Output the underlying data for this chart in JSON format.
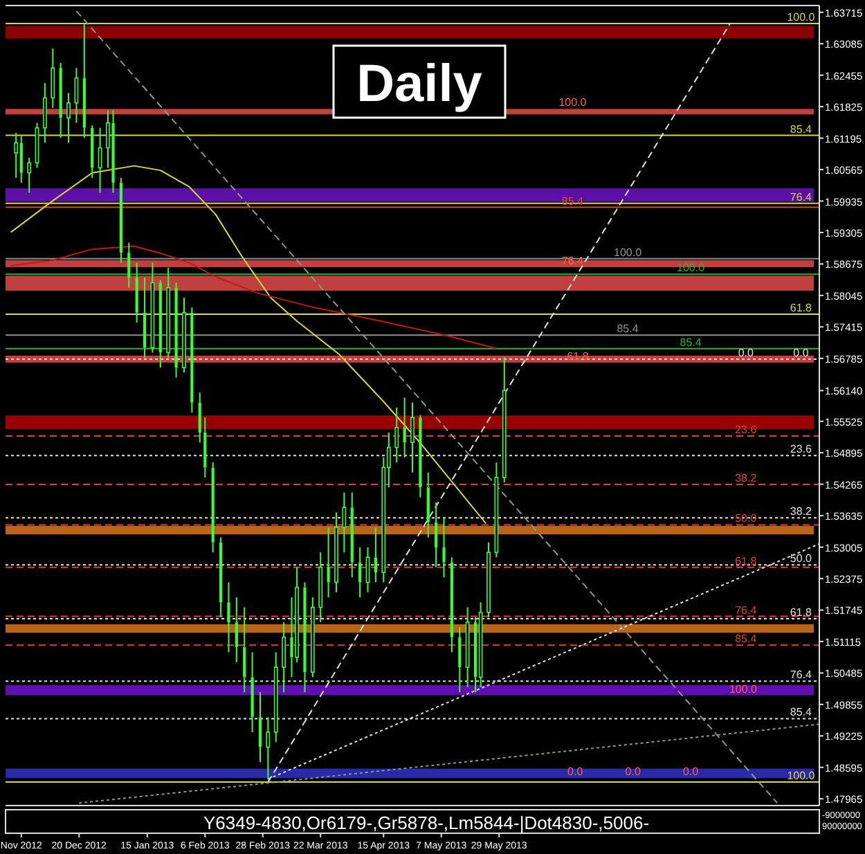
{
  "chart_data": {
    "type": "candlestick",
    "title": "Daily",
    "color": "#33ff33",
    "x": [
      "2012-11-26",
      "2012-11-28",
      "2012-12-01",
      "2012-12-04",
      "2012-12-07",
      "2012-12-10",
      "2012-12-13",
      "2012-12-16",
      "2012-12-19",
      "2012-12-22",
      "2012-12-25",
      "2012-12-28",
      "2012-12-31",
      "2013-01-02",
      "2013-01-05",
      "2013-01-08",
      "2013-01-11",
      "2013-01-14",
      "2013-01-17",
      "2013-01-20",
      "2013-01-23",
      "2013-01-26",
      "2013-01-29",
      "2013-02-01",
      "2013-02-04",
      "2013-02-06",
      "2013-02-09",
      "2013-02-12",
      "2013-02-15",
      "2013-02-18",
      "2013-02-21",
      "2013-02-24",
      "2013-02-27",
      "2013-03-02",
      "2013-03-05",
      "2013-03-08",
      "2013-03-11",
      "2013-03-13",
      "2013-03-16",
      "2013-03-19",
      "2013-03-22",
      "2013-03-25",
      "2013-03-28",
      "2013-03-31",
      "2013-04-03",
      "2013-04-06",
      "2013-04-09",
      "2013-04-12",
      "2013-04-15",
      "2013-04-17",
      "2013-04-20",
      "2013-04-23",
      "2013-04-26",
      "2013-04-29",
      "2013-05-02",
      "2013-05-05",
      "2013-05-08",
      "2013-05-11",
      "2013-05-14",
      "2013-05-17",
      "2013-05-20",
      "2013-05-22",
      "2013-05-25",
      "2013-05-28",
      "2013-05-31"
    ],
    "ohlc": [
      [
        1.609,
        1.613,
        1.604,
        1.611
      ],
      [
        1.611,
        1.6125,
        1.603,
        1.605
      ],
      [
        1.605,
        1.608,
        1.601,
        1.607
      ],
      [
        1.607,
        1.615,
        1.606,
        1.614
      ],
      [
        1.614,
        1.623,
        1.611,
        1.62
      ],
      [
        1.62,
        1.6299,
        1.618,
        1.626
      ],
      [
        1.626,
        1.627,
        1.612,
        1.616
      ],
      [
        1.616,
        1.621,
        1.611,
        1.619
      ],
      [
        1.619,
        1.626,
        1.615,
        1.624
      ],
      [
        1.624,
        1.6349,
        1.612,
        1.614
      ],
      [
        1.614,
        1.6145,
        1.604,
        1.606
      ],
      [
        1.606,
        1.614,
        1.601,
        1.61
      ],
      [
        1.61,
        1.6175,
        1.606,
        1.615
      ],
      [
        1.615,
        1.6175,
        1.601,
        1.603
      ],
      [
        1.603,
        1.604,
        1.587,
        1.589
      ],
      [
        1.589,
        1.591,
        1.582,
        1.584
      ],
      [
        1.584,
        1.587,
        1.575,
        1.577
      ],
      [
        1.577,
        1.584,
        1.568,
        1.57
      ],
      [
        1.57,
        1.587,
        1.569,
        1.583
      ],
      [
        1.583,
        1.5835,
        1.566,
        1.569
      ],
      [
        1.569,
        1.586,
        1.568,
        1.582
      ],
      [
        1.582,
        1.583,
        1.564,
        1.566
      ],
      [
        1.566,
        1.58,
        1.565,
        1.577
      ],
      [
        1.577,
        1.578,
        1.557,
        1.559
      ],
      [
        1.559,
        1.561,
        1.551,
        1.553
      ],
      [
        1.553,
        1.556,
        1.544,
        1.546
      ],
      [
        1.546,
        1.547,
        1.529,
        1.531
      ],
      [
        1.531,
        1.532,
        1.516,
        1.519
      ],
      [
        1.519,
        1.523,
        1.509,
        1.515
      ],
      [
        1.515,
        1.52,
        1.507,
        1.51
      ],
      [
        1.51,
        1.518,
        1.501,
        1.504
      ],
      [
        1.504,
        1.509,
        1.493,
        1.496
      ],
      [
        1.496,
        1.501,
        1.487,
        1.49
      ],
      [
        1.49,
        1.496,
        1.4835,
        1.493
      ],
      [
        1.493,
        1.509,
        1.491,
        1.506
      ],
      [
        1.506,
        1.515,
        1.501,
        1.512
      ],
      [
        1.512,
        1.52,
        1.504,
        1.508
      ],
      [
        1.508,
        1.526,
        1.507,
        1.522
      ],
      [
        1.522,
        1.523,
        1.501,
        1.505
      ],
      [
        1.505,
        1.52,
        1.504,
        1.518
      ],
      [
        1.518,
        1.529,
        1.515,
        1.526
      ],
      [
        1.526,
        1.534,
        1.52,
        1.523
      ],
      [
        1.523,
        1.537,
        1.521,
        1.534
      ],
      [
        1.534,
        1.541,
        1.529,
        1.538
      ],
      [
        1.538,
        1.541,
        1.524,
        1.527
      ],
      [
        1.527,
        1.53,
        1.52,
        1.523
      ],
      [
        1.523,
        1.53,
        1.521,
        1.528
      ],
      [
        1.528,
        1.534,
        1.523,
        1.525
      ],
      [
        1.525,
        1.548,
        1.523,
        1.546
      ],
      [
        1.546,
        1.553,
        1.542,
        1.55
      ],
      [
        1.55,
        1.558,
        1.547,
        1.554
      ],
      [
        1.554,
        1.56,
        1.548,
        1.551
      ],
      [
        1.551,
        1.559,
        1.545,
        1.556
      ],
      [
        1.556,
        1.5565,
        1.54,
        1.542
      ],
      [
        1.542,
        1.545,
        1.532,
        1.535
      ],
      [
        1.535,
        1.539,
        1.526,
        1.53
      ],
      [
        1.53,
        1.536,
        1.524,
        1.527
      ],
      [
        1.527,
        1.528,
        1.509,
        1.512
      ],
      [
        1.512,
        1.514,
        1.501,
        1.506
      ],
      [
        1.506,
        1.518,
        1.502,
        1.515
      ],
      [
        1.515,
        1.516,
        1.501,
        1.504
      ],
      [
        1.504,
        1.519,
        1.502,
        1.517
      ],
      [
        1.517,
        1.531,
        1.516,
        1.529
      ],
      [
        1.529,
        1.547,
        1.528,
        1.544
      ],
      [
        1.544,
        1.5681,
        1.543,
        1.5614
      ]
    ],
    "series": [
      {
        "type": "line",
        "color": "#d8d830",
        "x": [
          "2012-11-24",
          "2012-12-10",
          "2012-12-25",
          "2013-01-10",
          "2013-01-20",
          "2013-01-31",
          "2013-02-10",
          "2013-02-20",
          "2013-03-03",
          "2013-03-13",
          "2013-03-29",
          "2013-04-15",
          "2013-04-29",
          "2013-05-24"
        ],
        "values": [
          1.5931,
          1.5994,
          1.605,
          1.6064,
          1.6055,
          1.6022,
          1.5967,
          1.5883,
          1.58,
          1.5753,
          1.5687,
          1.5592,
          1.5509,
          1.5348
        ]
      },
      {
        "type": "line",
        "color": "#c01818",
        "x": [
          "2012-11-24",
          "2012-12-10",
          "2012-12-25",
          "2013-01-10",
          "2013-01-20",
          "2013-01-31",
          "2013-02-10",
          "2013-02-26",
          "2013-03-19",
          "2013-04-14",
          "2013-05-10",
          "2013-05-28"
        ],
        "values": [
          1.5864,
          1.5875,
          1.5897,
          1.5903,
          1.5889,
          1.587,
          1.5842,
          1.5809,
          1.5781,
          1.5753,
          1.5723,
          1.5698
        ]
      },
      {
        "type": "line",
        "color": "#e0e0e0",
        "line_style": "dashed",
        "x": [
          "2013-03-02",
          "2013-08-25"
        ],
        "values": [
          1.483,
          1.6349
        ]
      },
      {
        "type": "line",
        "color": "#8a9a8a",
        "line_style": "dashed",
        "x": [
          "2012-12-19",
          "2013-09-12"
        ],
        "values": [
          1.6374,
          1.4788
        ]
      },
      {
        "type": "line",
        "color": "#e0e0e0",
        "line_style": "dotted",
        "x": [
          "2013-03-02",
          "2013-09-28"
        ],
        "values": [
          1.4836,
          1.5307
        ]
      },
      {
        "type": "line",
        "color": "#8a9a8a",
        "line_style": "dotted",
        "x": [
          "2012-12-20",
          "2013-09-28"
        ],
        "values": [
          1.4788,
          1.4946
        ]
      }
    ],
    "xlim": [
      "2012-11-22",
      "2013-09-28"
    ],
    "xticks": [
      {
        "value": "2012-11-28",
        "label": "Nov 2012"
      },
      {
        "value": "2012-12-20",
        "label": "20 Dec 2012"
      },
      {
        "value": "2013-01-15",
        "label": "15 Jan 2013"
      },
      {
        "value": "2013-02-06",
        "label": "6 Feb 2013"
      },
      {
        "value": "2013-02-28",
        "label": "28 Feb 2013"
      },
      {
        "value": "2013-03-22",
        "label": "22 Mar 2013"
      },
      {
        "value": "2013-04-15",
        "label": "15 Apr 2013"
      },
      {
        "value": "2013-05-07",
        "label": "7 May 2013"
      },
      {
        "value": "2013-05-29",
        "label": "29 May 2013"
      }
    ],
    "ylim": [
      1.4783,
      1.6385
    ],
    "yticks": [
      1.63715,
      1.63085,
      1.62455,
      1.61825,
      1.61195,
      1.60565,
      1.59935,
      1.59305,
      1.58675,
      1.58045,
      1.57415,
      1.56785,
      {
        "value": 1.5614,
        "label": "1.56140"
      },
      1.55525,
      1.54895,
      1.54265,
      1.53635,
      1.53005,
      1.52375,
      1.51745,
      1.51115,
      1.50485,
      1.49855,
      1.49225,
      1.48595,
      1.47965
    ],
    "bands": [
      {
        "axis": "y",
        "from": 1.6319,
        "to": 1.6344,
        "color": "#8b0000"
      },
      {
        "axis": "y",
        "from": 1.6167,
        "to": 1.6178,
        "color": "#c04040"
      },
      {
        "axis": "y",
        "from": 1.5992,
        "to": 1.6019,
        "color": "#5c10a8"
      },
      {
        "axis": "y",
        "from": 1.5861,
        "to": 1.5875,
        "color": "#c04040"
      },
      {
        "axis": "y",
        "from": 1.5814,
        "to": 1.5844,
        "color": "#c04040"
      },
      {
        "axis": "y",
        "from": 1.567,
        "to": 1.5684,
        "color": "#c04040"
      },
      {
        "axis": "y",
        "from": 1.5537,
        "to": 1.5564,
        "color": "#990000"
      },
      {
        "axis": "y",
        "from": 1.5326,
        "to": 1.5343,
        "color": "#b8651b"
      },
      {
        "axis": "y",
        "from": 1.5129,
        "to": 1.5146,
        "color": "#b8651b"
      },
      {
        "axis": "y",
        "from": 1.5004,
        "to": 1.5024,
        "color": "#6010b0"
      },
      {
        "axis": "y",
        "from": 1.4838,
        "to": 1.4857,
        "color": "#2a2aa8"
      }
    ],
    "ref_lines": [
      {
        "axis": "y",
        "value": 1.6349,
        "color": "#d8d840",
        "line_style": "solid"
      },
      {
        "axis": "y",
        "value": 1.6125,
        "color": "#d8d840",
        "line_style": "solid"
      },
      {
        "axis": "y",
        "value": 1.5989,
        "color": "#d8d840",
        "line_style": "solid"
      },
      {
        "axis": "y",
        "value": 1.5981,
        "color": "#d05020",
        "line_style": "solid"
      },
      {
        "axis": "y",
        "value": 1.5878,
        "color": "#909090",
        "line_style": "solid"
      },
      {
        "axis": "y",
        "value": 1.5847,
        "color": "#30b030",
        "line_style": "solid"
      },
      {
        "axis": "y",
        "value": 1.5767,
        "color": "#d8d840",
        "line_style": "solid"
      },
      {
        "axis": "y",
        "value": 1.5725,
        "color": "#909090",
        "line_style": "solid"
      },
      {
        "axis": "y",
        "value": 1.5698,
        "color": "#30b030",
        "line_style": "solid"
      },
      {
        "axis": "y",
        "value": 1.5677,
        "color": "#e0e0e0",
        "line_style": "dotted"
      },
      {
        "axis": "y",
        "value": 1.5523,
        "color": "#e04030",
        "line_style": "dashed"
      },
      {
        "axis": "y",
        "value": 1.5484,
        "color": "#e0e0e0",
        "line_style": "dotted"
      },
      {
        "axis": "y",
        "value": 1.5426,
        "color": "#e04030",
        "line_style": "dashed"
      },
      {
        "axis": "y",
        "value": 1.5359,
        "color": "#e0e0e0",
        "line_style": "dotted"
      },
      {
        "axis": "y",
        "value": 1.5345,
        "color": "#e04030",
        "line_style": "dashed"
      },
      {
        "axis": "y",
        "value": 1.5265,
        "color": "#e0e0e0",
        "line_style": "dotted"
      },
      {
        "axis": "y",
        "value": 1.526,
        "color": "#e04030",
        "line_style": "dashed"
      },
      {
        "axis": "y",
        "value": 1.5162,
        "color": "#e04030",
        "line_style": "dashed"
      },
      {
        "axis": "y",
        "value": 1.5157,
        "color": "#e0e0e0",
        "line_style": "dotted"
      },
      {
        "axis": "y",
        "value": 1.5104,
        "color": "#e04030",
        "line_style": "dashed"
      },
      {
        "axis": "y",
        "value": 1.5032,
        "color": "#e0e0e0",
        "line_style": "dotted"
      },
      {
        "axis": "y",
        "value": 1.4957,
        "color": "#e0e0e0",
        "line_style": "dotted"
      },
      {
        "axis": "y",
        "value": 1.483,
        "color": "#d8d840",
        "line_style": "solid"
      }
    ],
    "annotations": [
      "Y6349-4830,Or6179-,Gr5878-,Lm5844-|Dot4830-,5006-",
      "-9000000",
      "90000000",
      {
        "text": "100.0",
        "x": "2013-09-21",
        "y": 1.6349
      },
      {
        "text": "85.4",
        "x": "2013-09-21",
        "y": 1.6125
      },
      {
        "text": "76.4",
        "x": "2013-09-21",
        "y": 1.5989
      },
      {
        "text": "85.4",
        "x": "2013-06-26",
        "y": 1.5981
      },
      {
        "text": "100.0",
        "x": "2013-07-17",
        "y": 1.5878
      },
      {
        "text": "100.0",
        "x": "2013-08-10",
        "y": 1.5847
      },
      {
        "text": "61.8",
        "x": "2013-09-21",
        "y": 1.5767
      },
      {
        "text": "85.4",
        "x": "2013-07-17",
        "y": 1.5725
      },
      {
        "text": "85.4",
        "x": "2013-08-10",
        "y": 1.5698
      },
      {
        "text": "0.0",
        "x": "2013-09-21",
        "y": 1.5677
      },
      {
        "text": "0.0",
        "x": "2013-08-31",
        "y": 1.5677
      },
      {
        "text": "23.6",
        "x": "2013-08-31",
        "y": 1.5523
      },
      {
        "text": "23.6",
        "x": "2013-09-21",
        "y": 1.5484
      },
      {
        "text": "38.2",
        "x": "2013-08-31",
        "y": 1.5426
      },
      {
        "text": "38.2",
        "x": "2013-09-21",
        "y": 1.5359
      },
      {
        "text": "50.0",
        "x": "2013-08-31",
        "y": 1.5345
      },
      {
        "text": "50.0",
        "x": "2013-09-21",
        "y": 1.5265
      },
      {
        "text": "61.8",
        "x": "2013-08-31",
        "y": 1.526
      },
      {
        "text": "76.4",
        "x": "2013-08-31",
        "y": 1.5162
      },
      {
        "text": "61.8",
        "x": "2013-09-21",
        "y": 1.5157
      },
      {
        "text": "85.4",
        "x": "2013-08-31",
        "y": 1.5104
      },
      {
        "text": "76.4",
        "x": "2013-09-21",
        "y": 1.5032
      },
      {
        "text": "85.4",
        "x": "2013-09-21",
        "y": 1.4957
      },
      {
        "text": "100.0",
        "x": "2013-09-21",
        "y": 1.483
      },
      {
        "text": "100.0",
        "x": "2013-06-26",
        "y": 1.6178
      },
      {
        "text": "76.4",
        "x": "2013-06-26",
        "y": 1.5861
      },
      {
        "text": "61.8",
        "x": "2013-06-28",
        "y": 1.567
      },
      {
        "text": "100.0",
        "x": "2013-08-30",
        "y": 1.5004
      },
      {
        "text": "0.0",
        "x": "2013-06-27",
        "y": 1.4838
      },
      {
        "text": "0.0",
        "x": "2013-07-19",
        "y": 1.4838
      },
      {
        "text": "0.0",
        "x": "2013-08-10",
        "y": 1.4838
      }
    ]
  }
}
